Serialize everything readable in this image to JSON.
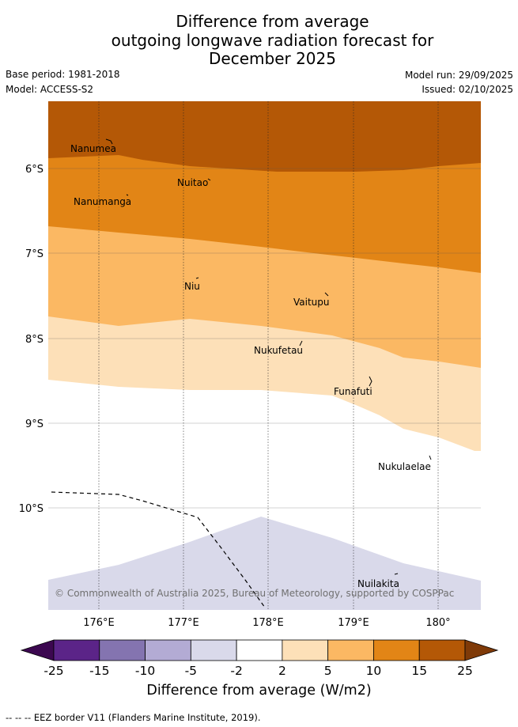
{
  "title": {
    "line1": "Difference from average",
    "line2": "outgoing longwave radiation forecast for",
    "line3": "December 2025"
  },
  "meta": {
    "base_period": "Base period: 1981-2018",
    "model": "Model: ACCESS-S2",
    "model_run": "Model run: 29/09/2025",
    "issued": "Issued: 02/10/2025"
  },
  "map": {
    "lat_labels": [
      "6°S",
      "7°S",
      "8°S",
      "9°S",
      "10°S"
    ],
    "lon_labels": [
      "176°E",
      "177°E",
      "178°E",
      "179°E",
      "180°"
    ],
    "places": [
      "Nanumea",
      "Nuitao",
      "Nanumanga",
      "Niu",
      "Vaitupu",
      "Nukufetau",
      "Funafuti",
      "Nukulaelae",
      "Nuilakita"
    ],
    "copyright": "© Commonwealth of Australia 2025, Bureau of Meteorology, supported by COSPPac"
  },
  "colorbar": {
    "ticks": [
      "-25",
      "-15",
      "-10",
      "-5",
      "-2",
      "2",
      "5",
      "10",
      "15",
      "25"
    ],
    "colors": [
      "#3c0850",
      "#5b2488",
      "#8474b0",
      "#b3abd4",
      "#d9d9ea",
      "#ffffff",
      "#fde0b8",
      "#fbb863",
      "#e28516",
      "#b45806",
      "#7f3a08"
    ],
    "title": "Difference from average (W/m2)"
  },
  "footer": {
    "eez_note": "--  --  -- EEZ border V11 (Flanders Marine Institute, 2019)."
  }
}
